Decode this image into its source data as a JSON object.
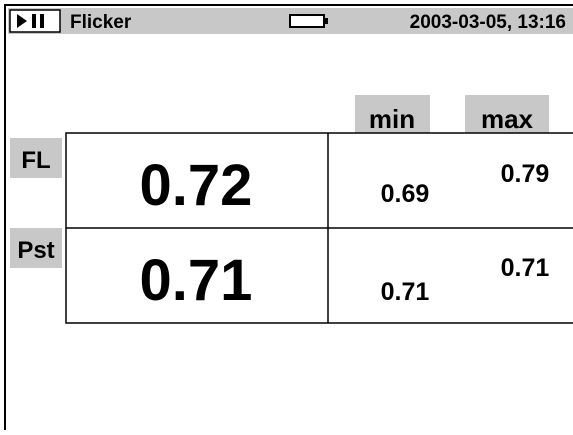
{
  "header": {
    "title": "Flicker",
    "datetime": "2003-03-05, 13:16"
  },
  "table": {
    "columns": [
      "min",
      "max"
    ],
    "rows": [
      {
        "label": "FL",
        "value": "0.72",
        "min": "0.69",
        "max": "0.79"
      },
      {
        "label": "Pst",
        "value": "0.71",
        "min": "0.71",
        "max": "0.71"
      }
    ]
  }
}
